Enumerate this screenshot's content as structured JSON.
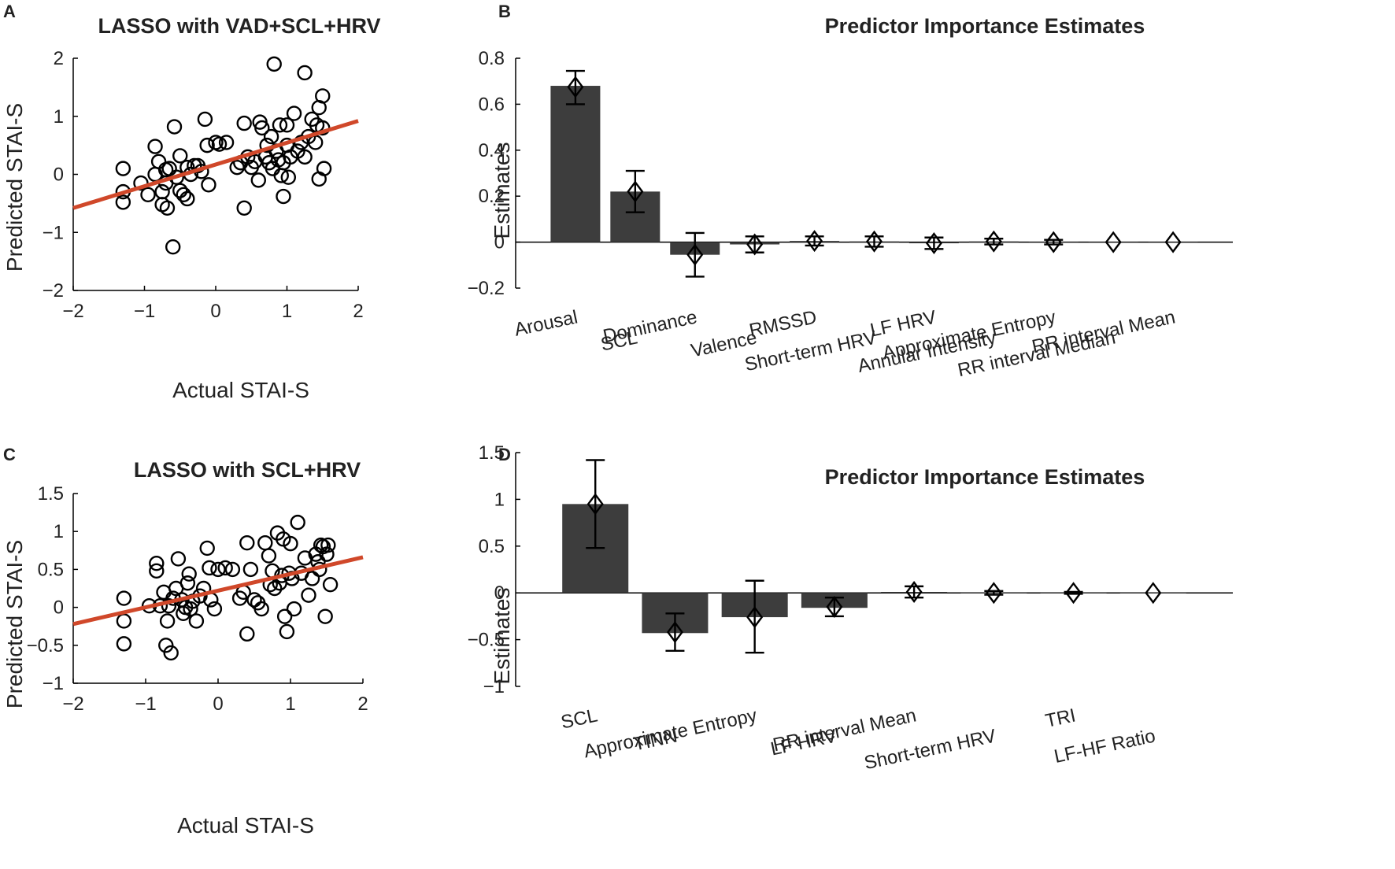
{
  "chart_data": [
    {
      "panel": "A",
      "type": "scatter",
      "title": "LASSO with VAD+SCL+HRV",
      "xlabel": "Actual STAI-S",
      "ylabel": "Predicted STAI-S",
      "xlim": [
        -2,
        2
      ],
      "ylim": [
        -2,
        2
      ],
      "xticks": [
        -2,
        -1,
        0,
        1,
        2
      ],
      "yticks": [
        -2,
        -1,
        0,
        1,
        2
      ],
      "marker_color": "#000000",
      "fit_color": "#d0482a",
      "fit_line": {
        "x": [
          -2,
          2
        ],
        "y": [
          -0.58,
          0.92
        ]
      },
      "points": [
        [
          -1.3,
          0.1
        ],
        [
          -1.3,
          -0.3
        ],
        [
          -1.3,
          -0.48
        ],
        [
          -1.05,
          -0.15
        ],
        [
          -0.95,
          -0.35
        ],
        [
          -0.85,
          0.48
        ],
        [
          -0.85,
          0.0
        ],
        [
          -0.8,
          0.22
        ],
        [
          -0.75,
          -0.3
        ],
        [
          -0.75,
          -0.52
        ],
        [
          -0.7,
          0.08
        ],
        [
          -0.7,
          -0.15
        ],
        [
          -0.68,
          -0.58
        ],
        [
          -0.65,
          0.1
        ],
        [
          -0.6,
          -1.25
        ],
        [
          -0.58,
          0.82
        ],
        [
          -0.55,
          -0.05
        ],
        [
          -0.5,
          0.32
        ],
        [
          -0.5,
          -0.28
        ],
        [
          -0.45,
          -0.35
        ],
        [
          -0.4,
          0.12
        ],
        [
          -0.4,
          -0.42
        ],
        [
          -0.35,
          0.0
        ],
        [
          -0.3,
          0.15
        ],
        [
          -0.25,
          0.15
        ],
        [
          -0.2,
          0.05
        ],
        [
          -0.15,
          0.95
        ],
        [
          -0.12,
          0.5
        ],
        [
          -0.1,
          -0.18
        ],
        [
          0.0,
          0.55
        ],
        [
          0.05,
          0.52
        ],
        [
          0.15,
          0.55
        ],
        [
          0.3,
          0.12
        ],
        [
          0.35,
          0.2
        ],
        [
          0.4,
          0.88
        ],
        [
          0.4,
          -0.58
        ],
        [
          0.45,
          0.3
        ],
        [
          0.5,
          0.12
        ],
        [
          0.55,
          0.22
        ],
        [
          0.6,
          -0.1
        ],
        [
          0.62,
          0.9
        ],
        [
          0.65,
          0.8
        ],
        [
          0.7,
          0.3
        ],
        [
          0.72,
          0.5
        ],
        [
          0.75,
          0.2
        ],
        [
          0.78,
          0.65
        ],
        [
          0.8,
          0.1
        ],
        [
          0.82,
          1.9
        ],
        [
          0.85,
          0.4
        ],
        [
          0.88,
          0.25
        ],
        [
          0.9,
          0.85
        ],
        [
          0.92,
          -0.02
        ],
        [
          0.95,
          -0.38
        ],
        [
          0.95,
          0.2
        ],
        [
          1.0,
          0.5
        ],
        [
          1.0,
          0.85
        ],
        [
          1.02,
          -0.05
        ],
        [
          1.05,
          0.3
        ],
        [
          1.1,
          1.05
        ],
        [
          1.15,
          0.4
        ],
        [
          1.2,
          0.55
        ],
        [
          1.25,
          1.75
        ],
        [
          1.25,
          0.3
        ],
        [
          1.3,
          0.65
        ],
        [
          1.35,
          0.95
        ],
        [
          1.4,
          0.55
        ],
        [
          1.42,
          0.85
        ],
        [
          1.45,
          1.15
        ],
        [
          1.45,
          -0.08
        ],
        [
          1.5,
          1.35
        ],
        [
          1.5,
          0.8
        ],
        [
          1.52,
          0.1
        ]
      ]
    },
    {
      "panel": "B",
      "type": "bar",
      "title": "Predictor Importance Estimates",
      "ylabel": "Estimates",
      "ylim": [
        -0.2,
        0.8
      ],
      "yticks": [
        -0.2,
        0,
        0.2,
        0.4,
        0.6,
        0.8
      ],
      "bar_color": "#3d3d3d",
      "categories": [
        "Arousal",
        "SCL",
        "Dominance",
        "Valence",
        "RMSSD",
        "Short-term HRV",
        "LF HRV",
        "Annular Intensity",
        "Approximate Entropy",
        "RR interval Median",
        "RR interval Mean"
      ],
      "values": [
        0.68,
        0.22,
        -0.055,
        -0.01,
        0.005,
        0.003,
        -0.005,
        0.003,
        0.0,
        0.0,
        0.0
      ],
      "markers": [
        0.675,
        0.22,
        -0.055,
        -0.01,
        0.005,
        0.003,
        -0.005,
        0.003,
        0.0,
        0.0,
        0.0
      ],
      "error_low": [
        0.6,
        0.13,
        -0.15,
        -0.045,
        -0.015,
        -0.02,
        -0.03,
        -0.01,
        -0.01,
        0.0,
        0.0
      ],
      "error_high": [
        0.745,
        0.31,
        0.04,
        0.025,
        0.025,
        0.025,
        0.02,
        0.015,
        0.01,
        0.0,
        0.0
      ]
    },
    {
      "panel": "C",
      "type": "scatter",
      "title": "LASSO with SCL+HRV",
      "xlabel": "Actual STAI-S",
      "ylabel": "Predicted STAI-S",
      "xlim": [
        -2,
        2
      ],
      "ylim": [
        -1,
        1.5
      ],
      "xticks": [
        -2,
        -1,
        0,
        1,
        2
      ],
      "yticks": [
        -1,
        -0.5,
        0,
        0.5,
        1,
        1.5
      ],
      "marker_color": "#000000",
      "fit_color": "#d0482a",
      "fit_line": {
        "x": [
          -2,
          2
        ],
        "y": [
          -0.22,
          0.66
        ]
      },
      "points": [
        [
          -1.3,
          0.12
        ],
        [
          -1.3,
          -0.18
        ],
        [
          -1.3,
          -0.48
        ],
        [
          -0.95,
          0.02
        ],
        [
          -0.85,
          0.58
        ],
        [
          -0.85,
          0.48
        ],
        [
          -0.8,
          0.02
        ],
        [
          -0.75,
          0.2
        ],
        [
          -0.72,
          -0.5
        ],
        [
          -0.7,
          -0.18
        ],
        [
          -0.68,
          0.02
        ],
        [
          -0.65,
          -0.6
        ],
        [
          -0.62,
          0.12
        ],
        [
          -0.58,
          0.25
        ],
        [
          -0.55,
          0.64
        ],
        [
          -0.5,
          0.1
        ],
        [
          -0.48,
          -0.08
        ],
        [
          -0.45,
          0.0
        ],
        [
          -0.42,
          0.32
        ],
        [
          -0.4,
          0.44
        ],
        [
          -0.38,
          -0.02
        ],
        [
          -0.35,
          0.08
        ],
        [
          -0.3,
          -0.18
        ],
        [
          -0.25,
          0.15
        ],
        [
          -0.2,
          0.25
        ],
        [
          -0.15,
          0.78
        ],
        [
          -0.12,
          0.52
        ],
        [
          -0.1,
          0.1
        ],
        [
          -0.05,
          -0.02
        ],
        [
          0.0,
          0.5
        ],
        [
          0.1,
          0.52
        ],
        [
          0.2,
          0.5
        ],
        [
          0.3,
          0.12
        ],
        [
          0.35,
          0.2
        ],
        [
          0.4,
          0.85
        ],
        [
          0.4,
          -0.35
        ],
        [
          0.45,
          0.5
        ],
        [
          0.5,
          0.1
        ],
        [
          0.55,
          0.06
        ],
        [
          0.6,
          -0.02
        ],
        [
          0.65,
          0.85
        ],
        [
          0.7,
          0.68
        ],
        [
          0.72,
          0.3
        ],
        [
          0.75,
          0.48
        ],
        [
          0.78,
          0.25
        ],
        [
          0.82,
          0.98
        ],
        [
          0.85,
          0.32
        ],
        [
          0.88,
          0.42
        ],
        [
          0.9,
          0.9
        ],
        [
          0.92,
          -0.12
        ],
        [
          0.95,
          -0.32
        ],
        [
          0.98,
          0.45
        ],
        [
          1.0,
          0.84
        ],
        [
          1.02,
          0.38
        ],
        [
          1.05,
          -0.02
        ],
        [
          1.1,
          1.12
        ],
        [
          1.15,
          0.45
        ],
        [
          1.2,
          0.65
        ],
        [
          1.25,
          0.16
        ],
        [
          1.3,
          0.38
        ],
        [
          1.35,
          0.7
        ],
        [
          1.38,
          0.6
        ],
        [
          1.4,
          0.5
        ],
        [
          1.42,
          0.82
        ],
        [
          1.45,
          0.8
        ],
        [
          1.48,
          -0.12
        ],
        [
          1.5,
          0.7
        ],
        [
          1.52,
          0.82
        ],
        [
          1.55,
          0.3
        ]
      ]
    },
    {
      "panel": "D",
      "type": "bar",
      "title": "Predictor Importance Estimates",
      "ylabel": "Estimates",
      "ylim": [
        -1,
        1.5
      ],
      "yticks": [
        -1,
        -0.5,
        0,
        0.5,
        1,
        1.5
      ],
      "bar_color": "#3d3d3d",
      "categories": [
        "SCL",
        "TINN",
        "Approximate Entropy",
        "LF HRV",
        "RR interval Mean",
        "Short-term HRV",
        "TRI",
        "LF-HF Ratio"
      ],
      "values": [
        0.95,
        -0.43,
        -0.26,
        -0.16,
        0.01,
        0.0,
        0.0,
        0.0
      ],
      "markers": [
        0.95,
        -0.42,
        -0.26,
        -0.15,
        0.01,
        0.0,
        0.0,
        0.0
      ],
      "error_low": [
        0.48,
        -0.62,
        -0.64,
        -0.25,
        -0.05,
        -0.02,
        -0.01,
        0.0
      ],
      "error_high": [
        1.42,
        -0.22,
        0.13,
        -0.05,
        0.07,
        0.02,
        0.01,
        0.0
      ]
    }
  ]
}
